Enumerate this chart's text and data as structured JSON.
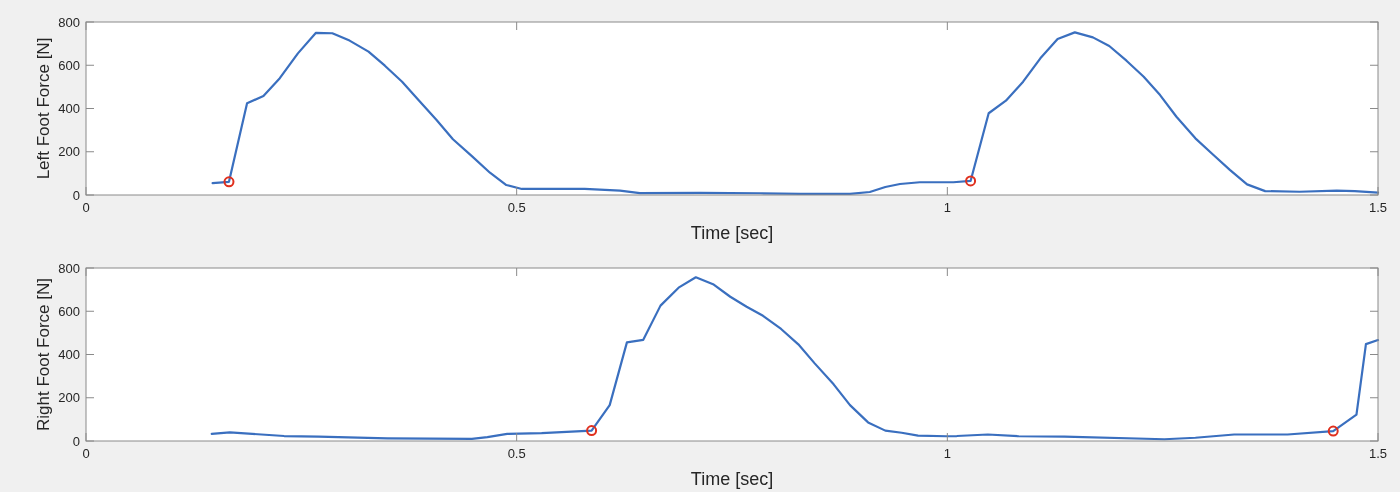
{
  "chart_data": [
    {
      "type": "line",
      "xlabel": "Time [sec]",
      "ylabel": "Left Foot Force [N]",
      "xlim": [
        0,
        1.5
      ],
      "xticks": [
        0,
        0.5,
        1,
        1.5
      ],
      "ylim": [
        0,
        800
      ],
      "yticks": [
        0,
        200,
        400,
        600,
        800
      ],
      "grid": false,
      "line_style": "solid",
      "series": [
        {
          "color": "#3a6fbf",
          "x": [
            0.147,
            0.166,
            0.187,
            0.206,
            0.225,
            0.246,
            0.267,
            0.286,
            0.306,
            0.328,
            0.347,
            0.367,
            0.386,
            0.407,
            0.426,
            0.448,
            0.469,
            0.488,
            0.506,
            0.579,
            0.62,
            0.643,
            0.713,
            0.783,
            0.829,
            0.887,
            0.91,
            0.928,
            0.945,
            0.968,
            1.007,
            1.027,
            1.048,
            1.068,
            1.088,
            1.108,
            1.128,
            1.148,
            1.169,
            1.188,
            1.208,
            1.228,
            1.247,
            1.266,
            1.288,
            1.309,
            1.328,
            1.348,
            1.369,
            1.409,
            1.452,
            1.473,
            1.5
          ],
          "values": [
            55,
            61,
            424,
            458,
            540,
            655,
            750,
            748,
            714,
            663,
            598,
            524,
            439,
            347,
            258,
            180,
            103,
            46,
            28,
            28,
            20,
            9,
            10,
            8,
            5,
            5,
            14,
            37,
            51,
            59,
            59,
            65,
            378,
            436,
            524,
            632,
            721,
            752,
            729,
            689,
            621,
            547,
            462,
            362,
            262,
            185,
            116,
            49,
            18,
            15,
            20,
            18,
            11
          ]
        },
        {
          "type": "scatter",
          "color": "#e0301e",
          "marker": "circle",
          "x": [
            0.166,
            1.027
          ],
          "values": [
            61,
            65
          ]
        }
      ]
    },
    {
      "type": "line",
      "xlabel": "Time [sec]",
      "ylabel": "Right Foot Force [N]",
      "xlim": [
        0,
        1.5
      ],
      "xticks": [
        0,
        0.5,
        1,
        1.5
      ],
      "ylim": [
        0,
        800
      ],
      "yticks": [
        0,
        200,
        400,
        600,
        800
      ],
      "grid": false,
      "line_style": "solid",
      "series": [
        {
          "color": "#3a6fbf",
          "x": [
            0.146,
            0.167,
            0.23,
            0.27,
            0.35,
            0.448,
            0.466,
            0.489,
            0.529,
            0.587,
            0.608,
            0.628,
            0.647,
            0.667,
            0.688,
            0.708,
            0.728,
            0.748,
            0.767,
            0.786,
            0.807,
            0.827,
            0.846,
            0.868,
            0.887,
            0.908,
            0.928,
            0.947,
            0.966,
            0.999,
            1.011,
            1.047,
            1.083,
            1.136,
            1.252,
            1.288,
            1.333,
            1.395,
            1.448,
            1.475,
            1.486,
            1.5
          ],
          "values": [
            33,
            40,
            23,
            20,
            12,
            10,
            18,
            33,
            36,
            48,
            166,
            456,
            468,
            626,
            709,
            757,
            725,
            667,
            621,
            579,
            518,
            447,
            359,
            262,
            166,
            86,
            48,
            38,
            25,
            22,
            23,
            30,
            22,
            20,
            8,
            15,
            30,
            30,
            46,
            122,
            448,
            467
          ]
        },
        {
          "type": "scatter",
          "color": "#e0301e",
          "marker": "circle",
          "x": [
            0.587,
            1.448
          ],
          "values": [
            48,
            46
          ]
        }
      ]
    }
  ]
}
